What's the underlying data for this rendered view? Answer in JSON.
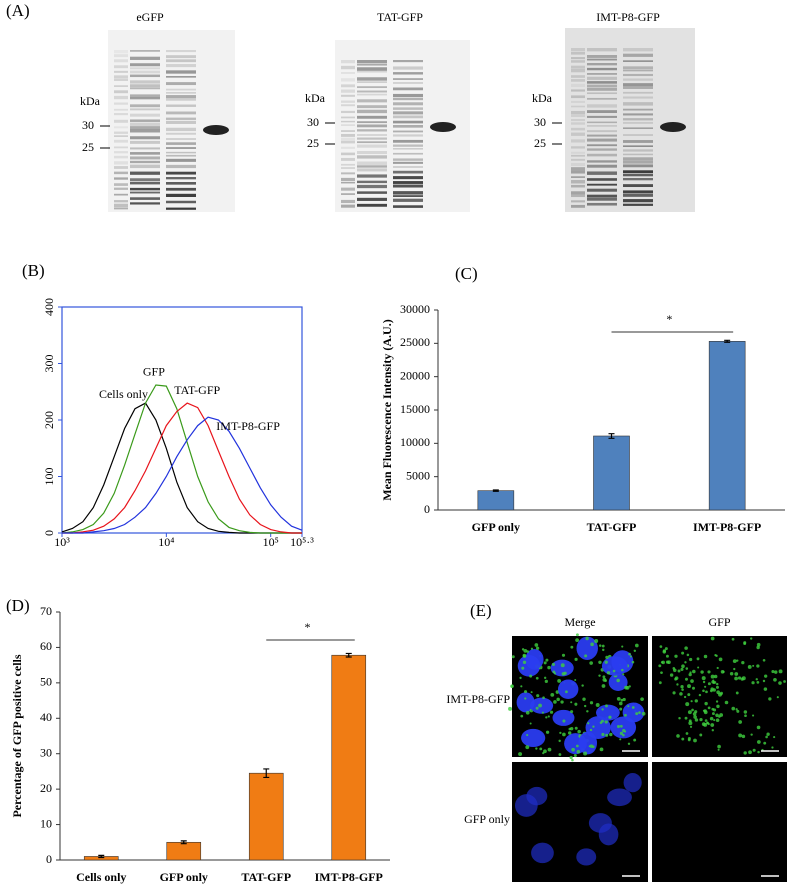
{
  "panel_labels": [
    "(A)",
    "(B)",
    "(C)",
    "(D)",
    "(E)"
  ],
  "gels": [
    {
      "title": "eGFP",
      "unit": "kDa",
      "markers": [
        30,
        25
      ]
    },
    {
      "title": "TAT-GFP",
      "unit": "kDa",
      "markers": [
        30,
        25
      ]
    },
    {
      "title": "IMT-P8-GFP",
      "unit": "kDa",
      "markers": [
        30,
        25
      ]
    }
  ],
  "chart_data": [
    {
      "type": "line",
      "xscale": "log",
      "x": [
        1000,
        1259,
        1585,
        1995,
        2512,
        3162,
        3981,
        5012,
        6310,
        7943,
        10000,
        12589,
        15849,
        19953,
        25119,
        31623,
        39811,
        50119,
        63096,
        79433,
        100000,
        125893,
        158489,
        199526
      ],
      "xlim": [
        1000,
        199526
      ],
      "xticks": [
        {
          "value": 1000,
          "label": "10³"
        },
        {
          "value": 10000,
          "label": "10⁴"
        },
        {
          "value": 100000,
          "label": "10⁵"
        },
        {
          "value": 199526,
          "label": "10⁵·³"
        }
      ],
      "ylim": [
        0,
        400
      ],
      "yticks": [
        0,
        100,
        200,
        300,
        400
      ],
      "axis_color": "#3355dd",
      "series": [
        {
          "name": "Cells only",
          "color": "#000000",
          "values": [
            2,
            8,
            20,
            45,
            85,
            135,
            185,
            220,
            230,
            200,
            150,
            90,
            45,
            20,
            8,
            3,
            1,
            0,
            0,
            0,
            0,
            0,
            0,
            0
          ]
        },
        {
          "name": "GFP",
          "color": "#3a9a1a",
          "values": [
            0,
            2,
            6,
            15,
            35,
            70,
            120,
            175,
            230,
            262,
            260,
            220,
            160,
            100,
            55,
            25,
            10,
            4,
            1,
            0,
            0,
            0,
            0,
            0
          ]
        },
        {
          "name": "TAT-GFP",
          "color": "#e8141c",
          "values": [
            0,
            0,
            2,
            5,
            12,
            25,
            45,
            75,
            110,
            150,
            190,
            215,
            230,
            222,
            190,
            145,
            100,
            60,
            32,
            15,
            6,
            2,
            0,
            0
          ]
        },
        {
          "name": "IMT-P8-GFP",
          "color": "#2233dd",
          "values": [
            0,
            0,
            0,
            2,
            4,
            8,
            15,
            28,
            45,
            70,
            100,
            135,
            165,
            190,
            205,
            200,
            180,
            150,
            115,
            80,
            50,
            28,
            12,
            5
          ]
        }
      ]
    },
    {
      "type": "bar",
      "y_label": "Mean Fluorescence Intensity (A.U.)",
      "categories": [
        "GFP only",
        "TAT-GFP",
        "IMT-P8-GFP"
      ],
      "values": [
        2900,
        11100,
        25300
      ],
      "errors": [
        100,
        350,
        150
      ],
      "color": "#4f81bd",
      "ylim": [
        0,
        30000
      ],
      "yticks": [
        0,
        5000,
        10000,
        15000,
        20000,
        25000,
        30000
      ],
      "annotation": "*"
    },
    {
      "type": "bar",
      "y_label": "Percentage of GFP positive cells",
      "categories": [
        "Cells only",
        "GFP only",
        "TAT-GFP",
        "IMT-P8-GFP"
      ],
      "values": [
        1,
        5,
        24.5,
        57.8
      ],
      "errors": [
        0.3,
        0.4,
        1.2,
        0.5
      ],
      "color": "#f07c14",
      "ylim": [
        0,
        70
      ],
      "yticks": [
        0,
        10,
        20,
        30,
        40,
        50,
        60,
        70
      ],
      "annotation": "*"
    }
  ],
  "micrographs": {
    "columns": [
      "Merge",
      "GFP"
    ],
    "rows": [
      "IMT-P8-GFP",
      "GFP only"
    ]
  }
}
